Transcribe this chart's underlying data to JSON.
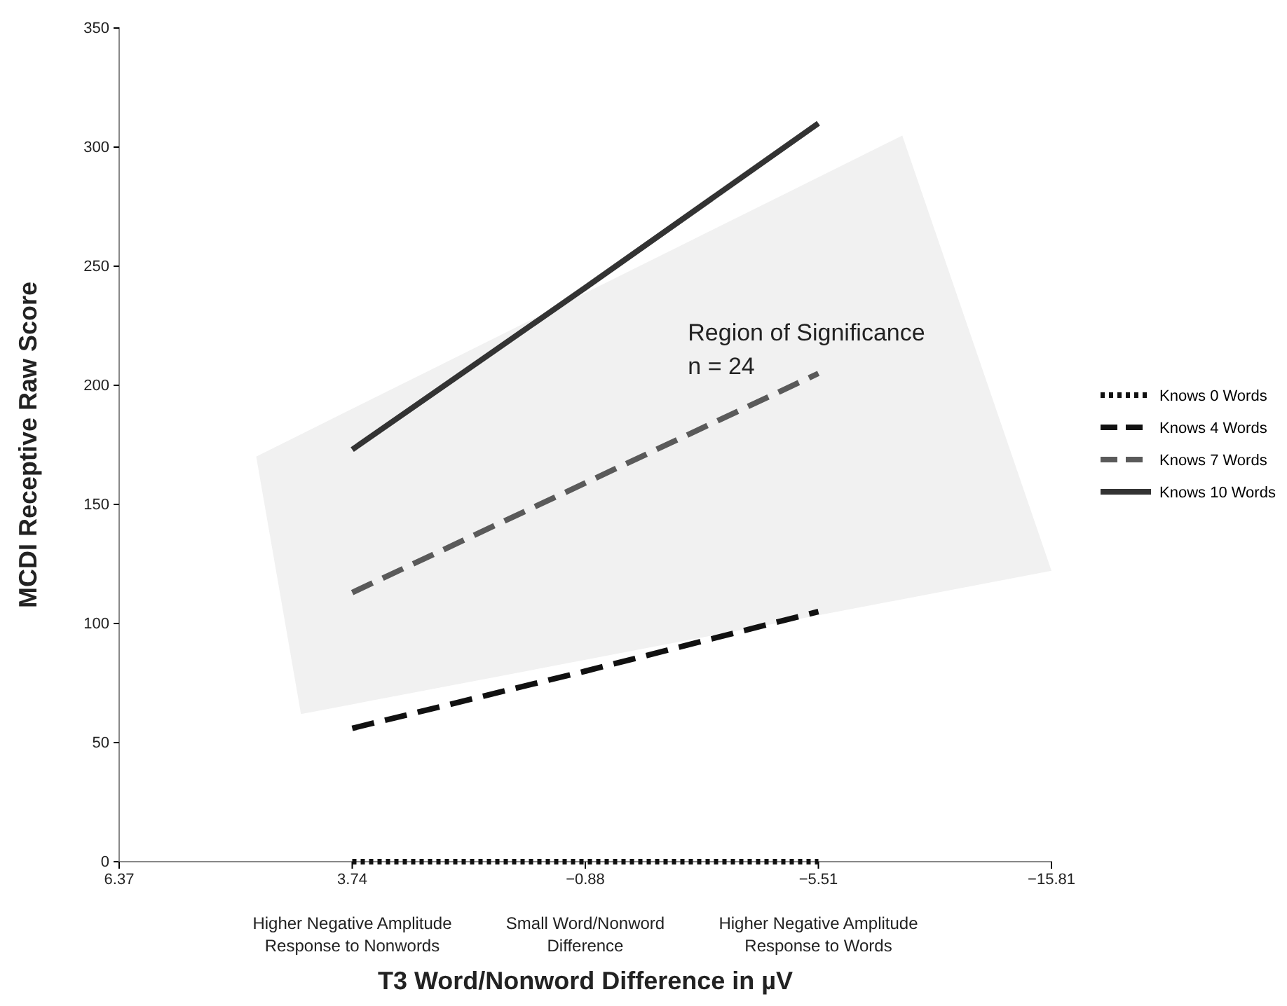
{
  "chart_data": {
    "type": "line",
    "xlabel": "T3 Word/Nonword Difference in µV",
    "ylabel": "MCDI Receptive Raw Score",
    "categories": [
      "6.37",
      "3.74",
      "−0.88",
      "−5.51",
      "−15.81"
    ],
    "ylim": [
      0,
      350
    ],
    "yticks": [
      0,
      50,
      100,
      150,
      200,
      250,
      300,
      350
    ],
    "grid": false,
    "legend": "right",
    "marker": "none",
    "series": [
      {
        "name": "Knows 0 Words",
        "color": "#111111",
        "line_style": "dotted",
        "values": [
          null,
          0,
          0,
          0,
          null
        ]
      },
      {
        "name": "Knows 4 Words",
        "color": "#111111",
        "line_style": "dashed",
        "values": [
          null,
          56,
          80,
          105,
          null
        ]
      },
      {
        "name": "Knows 7 Words",
        "color": "#5a5a5a",
        "line_style": "dashed",
        "values": [
          null,
          113,
          159,
          205,
          null
        ]
      },
      {
        "name": "Knows 10 Words",
        "color": "#333333",
        "line_style": "solid",
        "values": [
          null,
          173,
          241,
          310,
          null
        ]
      }
    ],
    "annotations": [
      "Higher Negative Amplitude Response to Nonwords",
      "Small Word/Nonword Difference",
      "Higher Negative Amplitude Response to Words",
      "Region of Significance",
      "n = 24"
    ]
  }
}
